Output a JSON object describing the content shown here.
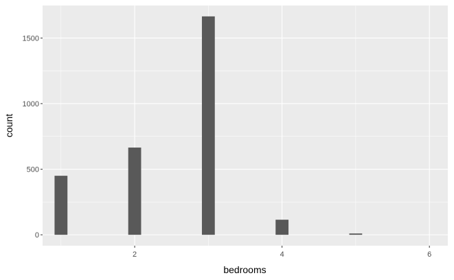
{
  "chart_data": {
    "type": "bar",
    "xlabel": "bedrooms",
    "ylabel": "count",
    "bars": [
      {
        "x": 1,
        "count": 450
      },
      {
        "x": 2,
        "count": 665
      },
      {
        "x": 3,
        "count": 1665
      },
      {
        "x": 4,
        "count": 115
      },
      {
        "x": 5,
        "count": 10
      }
    ],
    "x_ticks": [
      {
        "value": 2,
        "label": "2"
      },
      {
        "value": 4,
        "label": "4"
      },
      {
        "value": 6,
        "label": "6"
      }
    ],
    "y_ticks": [
      {
        "value": 0,
        "label": "0"
      },
      {
        "value": 500,
        "label": "500"
      },
      {
        "value": 1000,
        "label": "1000"
      },
      {
        "value": 1500,
        "label": "1500"
      }
    ],
    "xlim": [
      0.75,
      6.25
    ],
    "ylim": [
      -83,
      1748
    ],
    "bar_width": 0.175,
    "grid": true,
    "colors": {
      "panel": "#ebebeb",
      "grid_major": "#ffffff",
      "bar_fill": "#595959",
      "tick_text": "#4d4d4d",
      "axis_title": "#000000"
    }
  }
}
